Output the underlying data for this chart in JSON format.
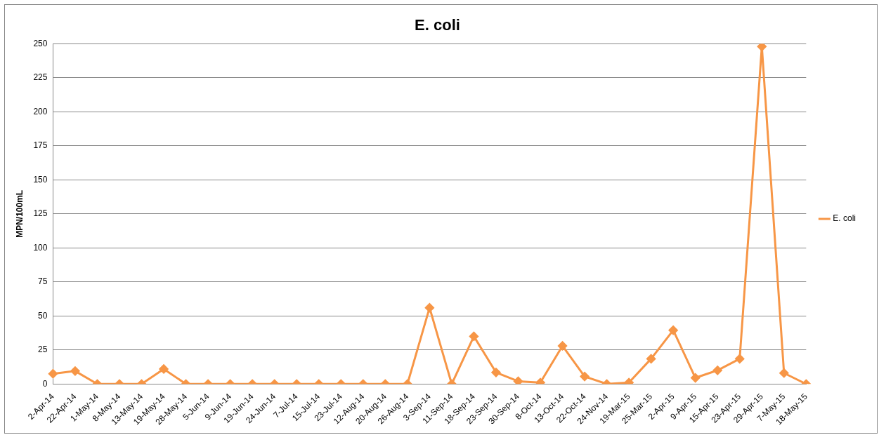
{
  "chart_data": {
    "type": "line",
    "title": "E. coli",
    "ylabel": "MPN/100mL",
    "categories": [
      "2-Apr-14",
      "22-Apr-14",
      "1-May-14",
      "8-May-14",
      "13-May-14",
      "19-May-14",
      "28-May-14",
      "5-Jun-14",
      "9-Jun-14",
      "19-Jun-14",
      "24-Jun-14",
      "7-Jul-14",
      "15-Jul-14",
      "23-Jul-14",
      "12-Aug-14",
      "20-Aug-14",
      "26-Aug-14",
      "3-Sep-14",
      "11-Sep-14",
      "18-Sep-14",
      "23-Sep-14",
      "30-Sep-14",
      "8-Oct-14",
      "13-Oct-14",
      "22-Oct-14",
      "24-Nov-14",
      "19-Mar-15",
      "25-Mar-15",
      "2-Apr-15",
      "9-Apr-15",
      "15-Apr-15",
      "23-Apr-15",
      "29-Apr-15",
      "7-May-15",
      "18-May-15"
    ],
    "series": [
      {
        "name": "E. coli",
        "color": "#f79646",
        "values": [
          7.5,
          9.5,
          0,
          0,
          0,
          11,
          0,
          0,
          0,
          0,
          0,
          0,
          0,
          0,
          0,
          0,
          0,
          56,
          0,
          35,
          8.5,
          2,
          1,
          28,
          5.5,
          0,
          1,
          18.5,
          39.5,
          4.5,
          10,
          18.5,
          248,
          8,
          0
        ]
      }
    ],
    "ylim": [
      0,
      250
    ],
    "yticks": [
      0,
      25,
      50,
      75,
      100,
      125,
      150,
      175,
      200,
      225,
      250
    ],
    "grid": "y",
    "legend": "right",
    "marker": "diamond",
    "line_style": "solid"
  }
}
